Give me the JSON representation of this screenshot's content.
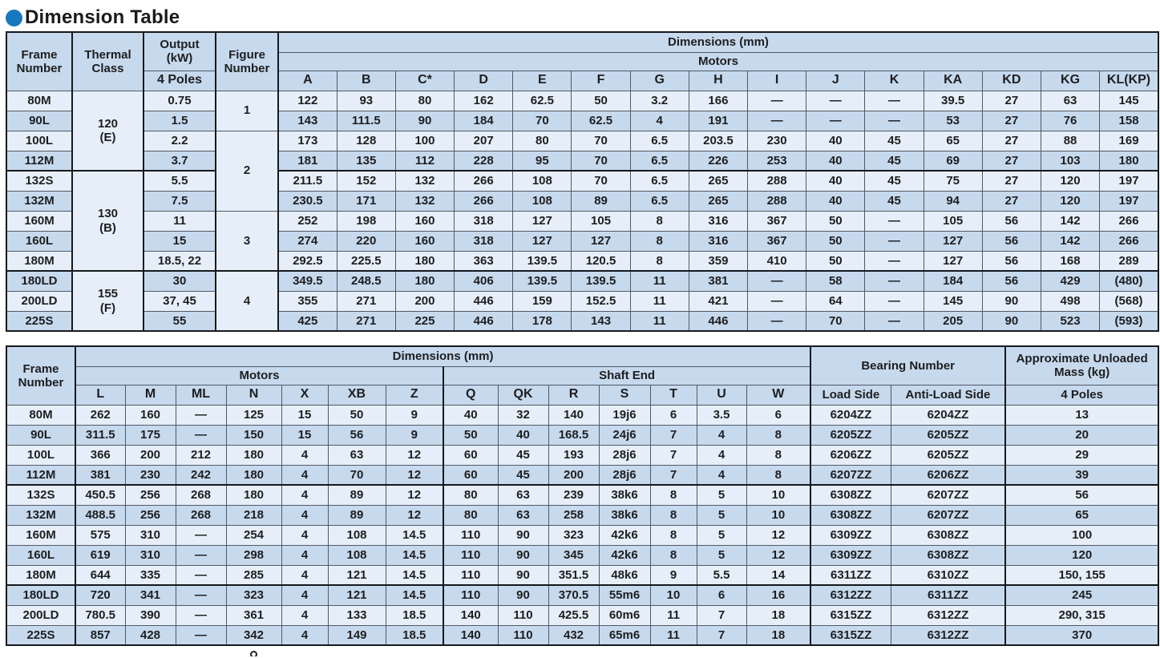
{
  "page": {
    "title": "Dimension Table",
    "accent_color": "#1878be",
    "footnote_fragment": "partial character cut off at page bottom"
  },
  "colors": {
    "header_bg": "#c7d9ed",
    "row_light": "#e6eff9",
    "row_dark": "#c7d9ed",
    "border_thin": "#4e5a67",
    "border_thick": "#16191d"
  },
  "table1": {
    "header": {
      "frame_number": "Frame Number",
      "thermal_class": "Thermal Class",
      "output_kw": "Output (kW)",
      "poles": "4 Poles",
      "figure_number": "Figure Number",
      "dimensions": "Dimensions (mm)",
      "motors": "Motors",
      "columns": [
        "A",
        "B",
        "C*",
        "D",
        "E",
        "F",
        "G",
        "H",
        "I",
        "J",
        "K",
        "KA",
        "KD",
        "KG",
        "KL(KP)"
      ]
    },
    "thermal_groups": [
      {
        "label": "120\n(E)",
        "span": 4
      },
      {
        "label": "130\n(B)",
        "span": 5
      },
      {
        "label": "155\n(F)",
        "span": 3
      }
    ],
    "figure_groups": [
      {
        "label": "1",
        "span": 2
      },
      {
        "label": "2",
        "span": 4
      },
      {
        "label": "3",
        "span": 3
      },
      {
        "label": "4",
        "span": 3
      }
    ],
    "group_start_rows": [
      4,
      9
    ],
    "rows": [
      {
        "frame": "80M",
        "output": "0.75",
        "dims": [
          "122",
          "93",
          "80",
          "162",
          "62.5",
          "50",
          "3.2",
          "166",
          "—",
          "—",
          "—",
          "39.5",
          "27",
          "63",
          "145"
        ]
      },
      {
        "frame": "90L",
        "output": "1.5",
        "dims": [
          "143",
          "111.5",
          "90",
          "184",
          "70",
          "62.5",
          "4",
          "191",
          "—",
          "—",
          "—",
          "53",
          "27",
          "76",
          "158"
        ]
      },
      {
        "frame": "100L",
        "output": "2.2",
        "dims": [
          "173",
          "128",
          "100",
          "207",
          "80",
          "70",
          "6.5",
          "203.5",
          "230",
          "40",
          "45",
          "65",
          "27",
          "88",
          "169"
        ]
      },
      {
        "frame": "112M",
        "output": "3.7",
        "dims": [
          "181",
          "135",
          "112",
          "228",
          "95",
          "70",
          "6.5",
          "226",
          "253",
          "40",
          "45",
          "69",
          "27",
          "103",
          "180"
        ]
      },
      {
        "frame": "132S",
        "output": "5.5",
        "dims": [
          "211.5",
          "152",
          "132",
          "266",
          "108",
          "70",
          "6.5",
          "265",
          "288",
          "40",
          "45",
          "75",
          "27",
          "120",
          "197"
        ]
      },
      {
        "frame": "132M",
        "output": "7.5",
        "dims": [
          "230.5",
          "171",
          "132",
          "266",
          "108",
          "89",
          "6.5",
          "265",
          "288",
          "40",
          "45",
          "94",
          "27",
          "120",
          "197"
        ]
      },
      {
        "frame": "160M",
        "output": "11",
        "dims": [
          "252",
          "198",
          "160",
          "318",
          "127",
          "105",
          "8",
          "316",
          "367",
          "50",
          "—",
          "105",
          "56",
          "142",
          "266"
        ]
      },
      {
        "frame": "160L",
        "output": "15",
        "dims": [
          "274",
          "220",
          "160",
          "318",
          "127",
          "127",
          "8",
          "316",
          "367",
          "50",
          "—",
          "127",
          "56",
          "142",
          "266"
        ]
      },
      {
        "frame": "180M",
        "output": "18.5, 22",
        "dims": [
          "292.5",
          "225.5",
          "180",
          "363",
          "139.5",
          "120.5",
          "8",
          "359",
          "410",
          "50",
          "—",
          "127",
          "56",
          "168",
          "289"
        ]
      },
      {
        "frame": "180LD",
        "output": "30",
        "dims": [
          "349.5",
          "248.5",
          "180",
          "406",
          "139.5",
          "139.5",
          "11",
          "381",
          "—",
          "58",
          "—",
          "184",
          "56",
          "429",
          "(480)"
        ]
      },
      {
        "frame": "200LD",
        "output": "37, 45",
        "dims": [
          "355",
          "271",
          "200",
          "446",
          "159",
          "152.5",
          "11",
          "421",
          "—",
          "64",
          "—",
          "145",
          "90",
          "498",
          "(568)"
        ]
      },
      {
        "frame": "225S",
        "output": "55",
        "dims": [
          "425",
          "271",
          "225",
          "446",
          "178",
          "143",
          "11",
          "446",
          "—",
          "70",
          "—",
          "205",
          "90",
          "523",
          "(593)"
        ]
      }
    ]
  },
  "table2": {
    "header": {
      "frame_number": "Frame Number",
      "dimensions": "Dimensions (mm)",
      "motors": "Motors",
      "shaft_end": "Shaft End",
      "bearing_number": "Bearing Number",
      "mass": "Approximate Unloaded Mass (kg)",
      "poles": "4 Poles",
      "motor_columns": [
        "L",
        "M",
        "ML",
        "N",
        "X",
        "XB",
        "Z"
      ],
      "shaft_columns": [
        "Q",
        "QK",
        "R",
        "S",
        "T",
        "U",
        "W"
      ],
      "bearing_columns": [
        "Load Side",
        "Anti-Load Side"
      ]
    },
    "group_start_rows": [
      4,
      9
    ],
    "rows": [
      {
        "frame": "80M",
        "motors": [
          "262",
          "160",
          "—",
          "125",
          "15",
          "50",
          "9"
        ],
        "shaft": [
          "40",
          "32",
          "140",
          "19j6",
          "6",
          "3.5",
          "6"
        ],
        "bearing": [
          "6204ZZ",
          "6204ZZ"
        ],
        "mass": "13"
      },
      {
        "frame": "90L",
        "motors": [
          "311.5",
          "175",
          "—",
          "150",
          "15",
          "56",
          "9"
        ],
        "shaft": [
          "50",
          "40",
          "168.5",
          "24j6",
          "7",
          "4",
          "8"
        ],
        "bearing": [
          "6205ZZ",
          "6205ZZ"
        ],
        "mass": "20"
      },
      {
        "frame": "100L",
        "motors": [
          "366",
          "200",
          "212",
          "180",
          "4",
          "63",
          "12"
        ],
        "shaft": [
          "60",
          "45",
          "193",
          "28j6",
          "7",
          "4",
          "8"
        ],
        "bearing": [
          "6206ZZ",
          "6205ZZ"
        ],
        "mass": "29"
      },
      {
        "frame": "112M",
        "motors": [
          "381",
          "230",
          "242",
          "180",
          "4",
          "70",
          "12"
        ],
        "shaft": [
          "60",
          "45",
          "200",
          "28j6",
          "7",
          "4",
          "8"
        ],
        "bearing": [
          "6207ZZ",
          "6206ZZ"
        ],
        "mass": "39"
      },
      {
        "frame": "132S",
        "motors": [
          "450.5",
          "256",
          "268",
          "180",
          "4",
          "89",
          "12"
        ],
        "shaft": [
          "80",
          "63",
          "239",
          "38k6",
          "8",
          "5",
          "10"
        ],
        "bearing": [
          "6308ZZ",
          "6207ZZ"
        ],
        "mass": "56"
      },
      {
        "frame": "132M",
        "motors": [
          "488.5",
          "256",
          "268",
          "218",
          "4",
          "89",
          "12"
        ],
        "shaft": [
          "80",
          "63",
          "258",
          "38k6",
          "8",
          "5",
          "10"
        ],
        "bearing": [
          "6308ZZ",
          "6207ZZ"
        ],
        "mass": "65"
      },
      {
        "frame": "160M",
        "motors": [
          "575",
          "310",
          "—",
          "254",
          "4",
          "108",
          "14.5"
        ],
        "shaft": [
          "110",
          "90",
          "323",
          "42k6",
          "8",
          "5",
          "12"
        ],
        "bearing": [
          "6309ZZ",
          "6308ZZ"
        ],
        "mass": "100"
      },
      {
        "frame": "160L",
        "motors": [
          "619",
          "310",
          "—",
          "298",
          "4",
          "108",
          "14.5"
        ],
        "shaft": [
          "110",
          "90",
          "345",
          "42k6",
          "8",
          "5",
          "12"
        ],
        "bearing": [
          "6309ZZ",
          "6308ZZ"
        ],
        "mass": "120"
      },
      {
        "frame": "180M",
        "motors": [
          "644",
          "335",
          "—",
          "285",
          "4",
          "121",
          "14.5"
        ],
        "shaft": [
          "110",
          "90",
          "351.5",
          "48k6",
          "9",
          "5.5",
          "14"
        ],
        "bearing": [
          "6311ZZ",
          "6310ZZ"
        ],
        "mass": "150, 155"
      },
      {
        "frame": "180LD",
        "motors": [
          "720",
          "341",
          "—",
          "323",
          "4",
          "121",
          "14.5"
        ],
        "shaft": [
          "110",
          "90",
          "370.5",
          "55m6",
          "10",
          "6",
          "16"
        ],
        "bearing": [
          "6312ZZ",
          "6311ZZ"
        ],
        "mass": "245"
      },
      {
        "frame": "200LD",
        "motors": [
          "780.5",
          "390",
          "—",
          "361",
          "4",
          "133",
          "18.5"
        ],
        "shaft": [
          "140",
          "110",
          "425.5",
          "60m6",
          "11",
          "7",
          "18"
        ],
        "bearing": [
          "6315ZZ",
          "6312ZZ"
        ],
        "mass": "290, 315"
      },
      {
        "frame": "225S",
        "motors": [
          "857",
          "428",
          "—",
          "342",
          "4",
          "149",
          "18.5"
        ],
        "shaft": [
          "140",
          "110",
          "432",
          "65m6",
          "11",
          "7",
          "18"
        ],
        "bearing": [
          "6315ZZ",
          "6312ZZ"
        ],
        "mass": "370"
      }
    ]
  }
}
